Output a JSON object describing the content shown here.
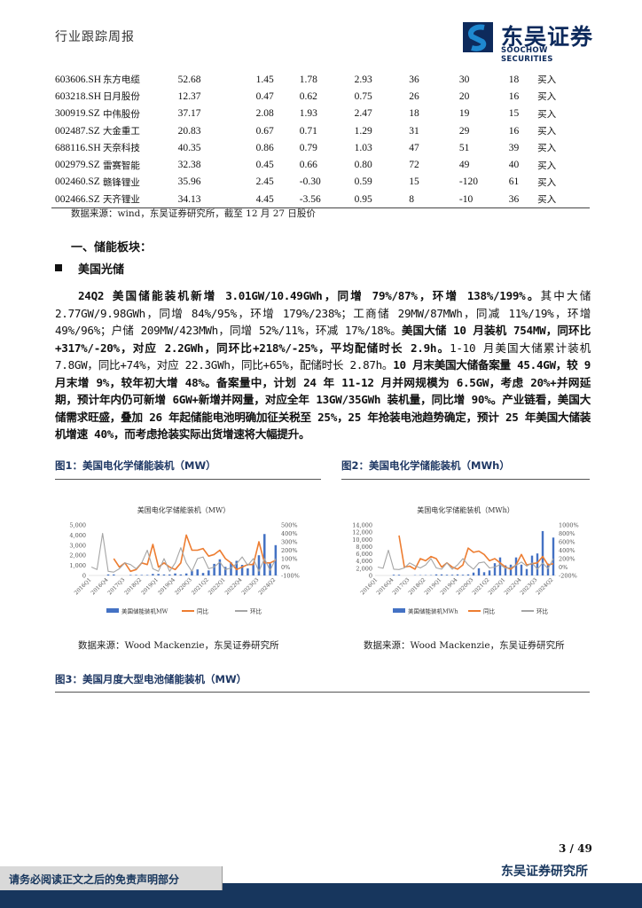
{
  "header": {
    "report_type": "行业跟踪周报",
    "logo_cn": "东吴证券",
    "logo_en": "SOOCHOW SECURITIES"
  },
  "table": {
    "rows": [
      [
        "603606.SH",
        "东方电缆",
        "52.68",
        "1.45",
        "1.78",
        "2.93",
        "36",
        "30",
        "18",
        "买入"
      ],
      [
        "603218.SH",
        "日月股份",
        "12.37",
        "0.47",
        "0.62",
        "0.75",
        "26",
        "20",
        "16",
        "买入"
      ],
      [
        "300919.SZ",
        "中伟股份",
        "37.17",
        "2.08",
        "1.93",
        "2.47",
        "18",
        "19",
        "15",
        "买入"
      ],
      [
        "002487.SZ",
        "大金重工",
        "20.83",
        "0.67",
        "0.71",
        "1.29",
        "31",
        "29",
        "16",
        "买入"
      ],
      [
        "688116.SH",
        "天奈科技",
        "40.35",
        "0.86",
        "0.79",
        "1.03",
        "47",
        "51",
        "39",
        "买入"
      ],
      [
        "002979.SZ",
        "雷赛智能",
        "32.38",
        "0.45",
        "0.66",
        "0.80",
        "72",
        "49",
        "40",
        "买入"
      ],
      [
        "002460.SZ",
        "赣锋锂业",
        "35.96",
        "2.45",
        "-0.30",
        "0.59",
        "15",
        "-120",
        "61",
        "买入"
      ],
      [
        "002466.SZ",
        "天齐锂业",
        "34.13",
        "4.45",
        "-3.56",
        "0.95",
        "8",
        "-10",
        "36",
        "买入"
      ]
    ],
    "source": "数据来源：wind，东吴证券研究所，截至 12 月 27 日股价"
  },
  "section": {
    "title": "一、储能板块：",
    "subtitle": "美国光储"
  },
  "paragraph": [
    {
      "bold": true,
      "text": "24Q2 美国储能装机新增 3.01GW/10.49GWh，同增 79%/87%，环增 138%/199%。"
    },
    {
      "bold": false,
      "text": "其中大储 2.77GW/9.98GWh，同增 84%/95%，环增 179%/238%；工商储 29MW/87MWh，同减 11%/19%，环增 49%/96%；户储 209MW/423MWh，同增 52%/11%，环减 17%/18%。"
    },
    {
      "bold": true,
      "text": "美国大储 10 月装机 754MW，同环比+317%/-20%，对应 2.2GWh，同环比+218%/-25%，平均配储时长 2.9h。"
    },
    {
      "bold": false,
      "text": "1-10 月美国大储累计装机 7.8GW，同比+74%，对应 22.3GWh，同比+65%，配储时长 2.87h。"
    },
    {
      "bold": true,
      "text": "10 月末美国大储备案量 45.4GW，较 9 月末增 9%，较年初大增 48%。备案量中，计划 24 年 11-12 月并网规模为 6.5GW，考虑 20%+并网延期，预计年内仍可新增 6GW+新增并网量，对应全年 13GW/35GWh 装机量，同比增 90%。产业链看，美国大储需求旺盛，叠加 26 年起储能电池明确加征关税至 25%，25 年抢装电池趋势确定，预计 25 年美国大储装机增速 40%，而考虑抢装实际出货增速将大幅提升。"
    }
  ],
  "figures": [
    {
      "caption": "图1：美国电化学储能装机（MW）",
      "source": "数据来源：Wood Mackenzie，东吴证券研究所"
    },
    {
      "caption": "图2：美国电化学储能装机（MWh）",
      "source": "数据来源：Wood Mackenzie，东吴证券研究所"
    },
    {
      "caption": "图3：美国月度大型电池储能装机（MW）"
    }
  ],
  "chart_data": [
    {
      "type": "bar+line",
      "title": "美国电化学储能装机（MW）",
      "x_tick_labels": [
        "2016Q1",
        "2016Q4",
        "2017Q3",
        "2018Q2",
        "2019Q1",
        "2019Q4",
        "2020Q3",
        "2021Q2",
        "2022Q1",
        "2022Q4",
        "2023Q3",
        "2024Q2"
      ],
      "x_start": "2016Q1",
      "x_end": "2024Q2",
      "y_left": {
        "range": [
          0,
          5000
        ],
        "ticks": [
          "0",
          "1,000",
          "2,000",
          "3,000",
          "4,000",
          "5,000"
        ]
      },
      "y_right": {
        "range": [
          -100,
          500
        ],
        "ticks": [
          "-100%",
          "0%",
          "100%",
          "200%",
          "300%",
          "400%",
          "500%"
        ]
      },
      "series": [
        {
          "name": "美国储能装机MW",
          "type": "bar",
          "axis": "left",
          "color": "#4472c4",
          "values": [
            0,
            0,
            0,
            100,
            100,
            0,
            0,
            50,
            50,
            50,
            50,
            150,
            150,
            100,
            100,
            200,
            100,
            200,
            450,
            600,
            250,
            500,
            1150,
            1600,
            850,
            1300,
            1450,
            1050,
            700,
            1200,
            2000,
            4100,
            1200,
            3000
          ]
        },
        {
          "name": "同比",
          "type": "line",
          "axis": "right",
          "color": "#ed7d31",
          "values": [
            null,
            null,
            null,
            null,
            100,
            0,
            50,
            -50,
            -30,
            50,
            30,
            270,
            0,
            50,
            0,
            -30,
            50,
            380,
            200,
            200,
            220,
            130,
            150,
            200,
            100,
            50,
            -30,
            0,
            30,
            30,
            300,
            50,
            50,
            80
          ]
        },
        {
          "name": "环比",
          "type": "line",
          "axis": "right",
          "color": "#a5a5a5",
          "values": [
            0,
            -30,
            400,
            -50,
            -60,
            -20,
            50,
            30,
            -20,
            50,
            200,
            -20,
            -50,
            100,
            -50,
            50,
            230,
            50,
            -50,
            100,
            120,
            -20,
            0,
            60,
            -30,
            -10,
            40,
            120,
            20,
            100,
            -50,
            100,
            -40,
            100
          ]
        }
      ],
      "legend": "bottom"
    },
    {
      "type": "bar+line",
      "title": "美国电化学储能装机（MWh）",
      "x_tick_labels": [
        "2016Q1",
        "2016Q4",
        "2017Q3",
        "2018Q2",
        "2019Q1",
        "2019Q4",
        "2020Q3",
        "2021Q2",
        "2022Q1",
        "2022Q4",
        "2023Q3",
        "2024Q2"
      ],
      "x_start": "2016Q1",
      "x_end": "2024Q2",
      "y_left": {
        "range": [
          0,
          14000
        ],
        "ticks": [
          "0",
          "2,000",
          "4,000",
          "6,000",
          "8,000",
          "10,000",
          "12,000",
          "14,000"
        ]
      },
      "y_right": {
        "range": [
          -200,
          1000
        ],
        "ticks": [
          "-200%",
          "0%",
          "200%",
          "400%",
          "600%",
          "800%",
          "1000%"
        ]
      },
      "series": [
        {
          "name": "美国储能装机MWh",
          "type": "bar",
          "axis": "left",
          "color": "#4472c4",
          "values": [
            0,
            0,
            0,
            200,
            200,
            0,
            0,
            100,
            100,
            100,
            100,
            300,
            300,
            200,
            200,
            300,
            200,
            300,
            800,
            2000,
            900,
            1400,
            3400,
            5000,
            2800,
            3000,
            5000,
            3000,
            1800,
            5500,
            6100,
            12300,
            3300,
            10500
          ]
        },
        {
          "name": "同比",
          "type": "line",
          "axis": "right",
          "color": "#ed7d31",
          "values": [
            null,
            null,
            null,
            null,
            750,
            0,
            20,
            -50,
            200,
            150,
            250,
            200,
            0,
            100,
            0,
            -50,
            50,
            450,
            350,
            380,
            300,
            150,
            200,
            100,
            0,
            -50,
            50,
            300,
            50,
            80,
            100,
            250,
            50,
            80
          ]
        },
        {
          "name": "环比",
          "type": "line",
          "axis": "right",
          "color": "#a5a5a5",
          "values": [
            0,
            -30,
            400,
            -50,
            -60,
            -20,
            100,
            30,
            -20,
            50,
            200,
            -20,
            -50,
            100,
            -50,
            50,
            200,
            50,
            -50,
            100,
            120,
            -20,
            0,
            60,
            -30,
            -10,
            40,
            120,
            20,
            100,
            -50,
            100,
            -40,
            200
          ]
        }
      ],
      "legend": "bottom"
    }
  ],
  "footer": {
    "page": "3 / 49",
    "org": "东吴证券研究所",
    "disclaimer": "请务必阅读正文之后的免责声明部分"
  },
  "colors": {
    "navy": "#17365d",
    "caption": "#1f3864",
    "bar": "#4472c4",
    "yoy": "#ed7d31",
    "qoq": "#a5a5a5"
  }
}
